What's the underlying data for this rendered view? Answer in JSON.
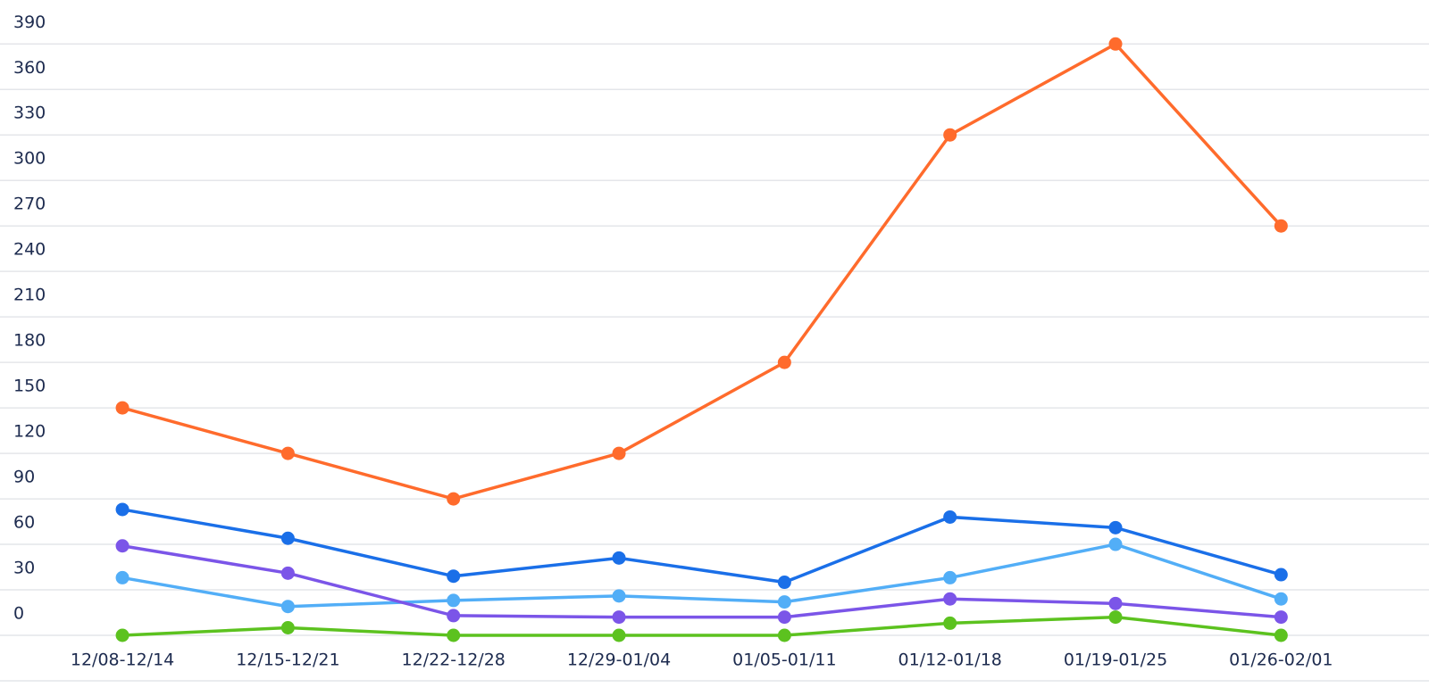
{
  "chart_data": {
    "type": "line",
    "categories": [
      "12/08-12/14",
      "12/15-12/21",
      "12/22-12/28",
      "12/29-01/04",
      "01/05-01/11",
      "01/12-01/18",
      "01/19-01/25",
      "01/26-02/01"
    ],
    "series": [
      {
        "color": "#ff6b2c",
        "values": [
          150,
          120,
          90,
          120,
          180,
          330,
          390,
          270
        ]
      },
      {
        "color": "#1a6fe8",
        "values": [
          83,
          64,
          39,
          51,
          35,
          78,
          71,
          40
        ]
      },
      {
        "color": "#52aef7",
        "values": [
          38,
          19,
          23,
          26,
          22,
          38,
          60,
          24
        ]
      },
      {
        "color": "#7b55e8",
        "values": [
          59,
          41,
          13,
          12,
          12,
          24,
          21,
          12
        ]
      },
      {
        "color": "#5cc21f",
        "values": [
          0,
          5,
          0,
          0,
          0,
          8,
          12,
          0
        ]
      }
    ],
    "ylim": [
      0,
      419
    ],
    "yticks": [
      0,
      30,
      60,
      90,
      120,
      150,
      180,
      210,
      240,
      270,
      300,
      330,
      360,
      390
    ],
    "grid": true
  }
}
